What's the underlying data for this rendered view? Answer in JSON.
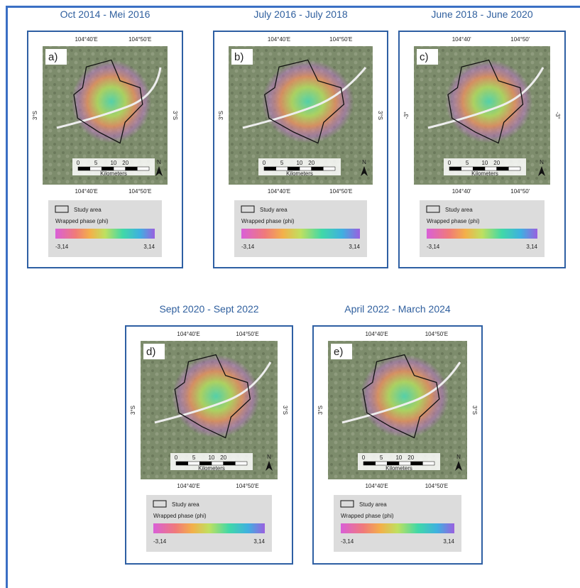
{
  "panels": [
    {
      "title": "Oct 2014 - Mei 2016",
      "label": "a)",
      "top_ticks": [
        "104°40'E",
        "104°50'E"
      ],
      "bottom_ticks": [
        "104°40'E",
        "104°50'E"
      ],
      "left_tick": "3°S",
      "right_tick": "3°S",
      "scale_labels": [
        "0",
        "5",
        "10",
        "20"
      ],
      "scale_unit": "Kilometers",
      "north": "N",
      "legend": {
        "study_area": "Study area",
        "phase": "Wrapped phase (phi)",
        "min": "-3,14",
        "max": "3,14"
      }
    },
    {
      "title": "July 2016 - July 2018",
      "label": "b)",
      "top_ticks": [
        "104°40'E",
        "104°50'E"
      ],
      "bottom_ticks": [
        "104°40'E",
        "104°50'E"
      ],
      "left_tick": "3°S",
      "right_tick": "3°S",
      "scale_labels": [
        "0",
        "5",
        "10",
        "20"
      ],
      "scale_unit": "Kilometers",
      "north": "N",
      "legend": {
        "study_area": "Study area",
        "phase": "Wrapped phase (phi)",
        "min": "-3,14",
        "max": "3,14"
      }
    },
    {
      "title": "June 2018 - June 2020",
      "label": "c)",
      "top_ticks": [
        "104°40'",
        "104°50'"
      ],
      "bottom_ticks": [
        "104°40'",
        "104°50'"
      ],
      "left_tick": "-3°",
      "right_tick": "-3°",
      "scale_labels": [
        "0",
        "5",
        "10",
        "20"
      ],
      "scale_unit": "Kilometers",
      "north": "N",
      "legend": {
        "study_area": "Study area",
        "phase": "Wrapped phase (phi)",
        "min": "-3,14",
        "max": "3,14"
      }
    },
    {
      "title": "Sept 2020 - Sept 2022",
      "label": "d)",
      "top_ticks": [
        "104°40'E",
        "104°50'E"
      ],
      "bottom_ticks": [
        "104°40'E",
        "104°50'E"
      ],
      "left_tick": "3°S",
      "right_tick": "3°S",
      "scale_labels": [
        "0",
        "5",
        "10",
        "20"
      ],
      "scale_unit": "Kilometers",
      "north": "N",
      "legend": {
        "study_area": "Study area",
        "phase": "Wrapped phase (phi)",
        "min": "-3,14",
        "max": "3,14"
      }
    },
    {
      "title": "April 2022 - March 2024",
      "label": "e)",
      "top_ticks": [
        "104°40'E",
        "104°50'E"
      ],
      "bottom_ticks": [
        "104°40'E",
        "104°50'E"
      ],
      "left_tick": "3°S",
      "right_tick": "3°S",
      "scale_labels": [
        "0",
        "5",
        "10",
        "20"
      ],
      "scale_unit": "Kilometers",
      "north": "N",
      "legend": {
        "study_area": "Study area",
        "phase": "Wrapped phase (phi)",
        "min": "-3,14",
        "max": "3,14"
      }
    }
  ]
}
